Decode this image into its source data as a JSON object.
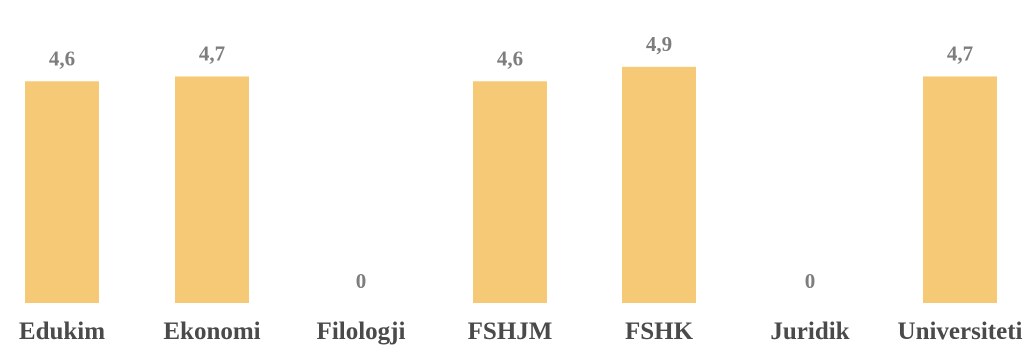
{
  "chart_data": {
    "type": "bar",
    "categories": [
      "Edukim",
      "Ekonomi",
      "Filologji",
      "FSHJM",
      "FSHK",
      "Juridik",
      "Universiteti"
    ],
    "values": [
      4.6,
      4.7,
      0,
      4.6,
      4.9,
      0,
      4.7
    ],
    "value_labels": [
      "4,6",
      "4,7",
      "0",
      "4,6",
      "4,9",
      "0",
      "4,7"
    ],
    "title": "",
    "xlabel": "",
    "ylabel": "",
    "ylim": [
      0,
      5.2
    ],
    "grid": false,
    "legend": "none",
    "colors": {
      "bar": "#F6C977",
      "value_label": "#7d7d7d",
      "category_label": "#4a4a4a"
    }
  }
}
